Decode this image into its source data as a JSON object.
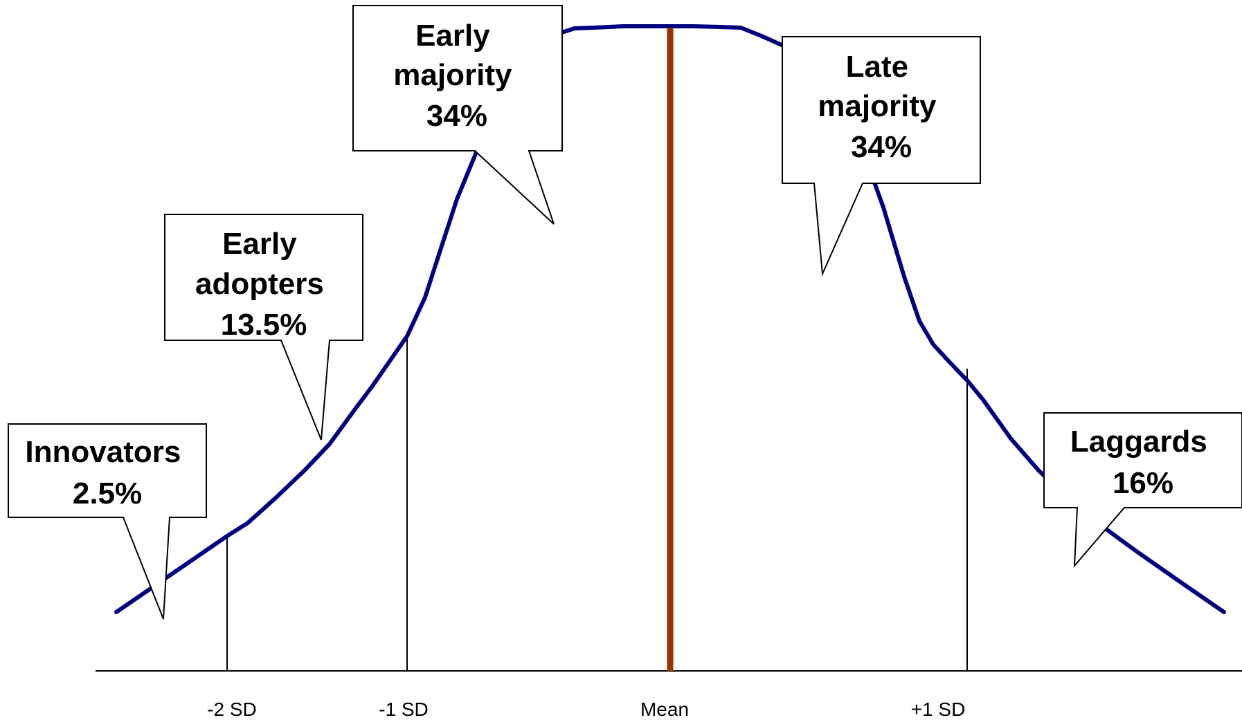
{
  "axis": {
    "labels": [
      "-2 SD",
      "-1 SD",
      "Mean",
      "+1 SD"
    ]
  },
  "callouts": [
    {
      "id": "innovators",
      "lines": [
        "Innovators",
        "2.5%"
      ]
    },
    {
      "id": "early-adopters",
      "lines": [
        "Early",
        "adopters",
        "13.5%"
      ]
    },
    {
      "id": "early-majority",
      "lines": [
        "Early",
        "majority",
        "34%"
      ]
    },
    {
      "id": "late-majority",
      "lines": [
        "Late",
        "majority",
        "34%"
      ]
    },
    {
      "id": "laggards",
      "lines": [
        "Laggards",
        "16%"
      ]
    }
  ],
  "colors": {
    "curve": "#000080",
    "mean_line": "#993300",
    "lines": "#000000",
    "callout_fill": "#ffffff"
  }
}
